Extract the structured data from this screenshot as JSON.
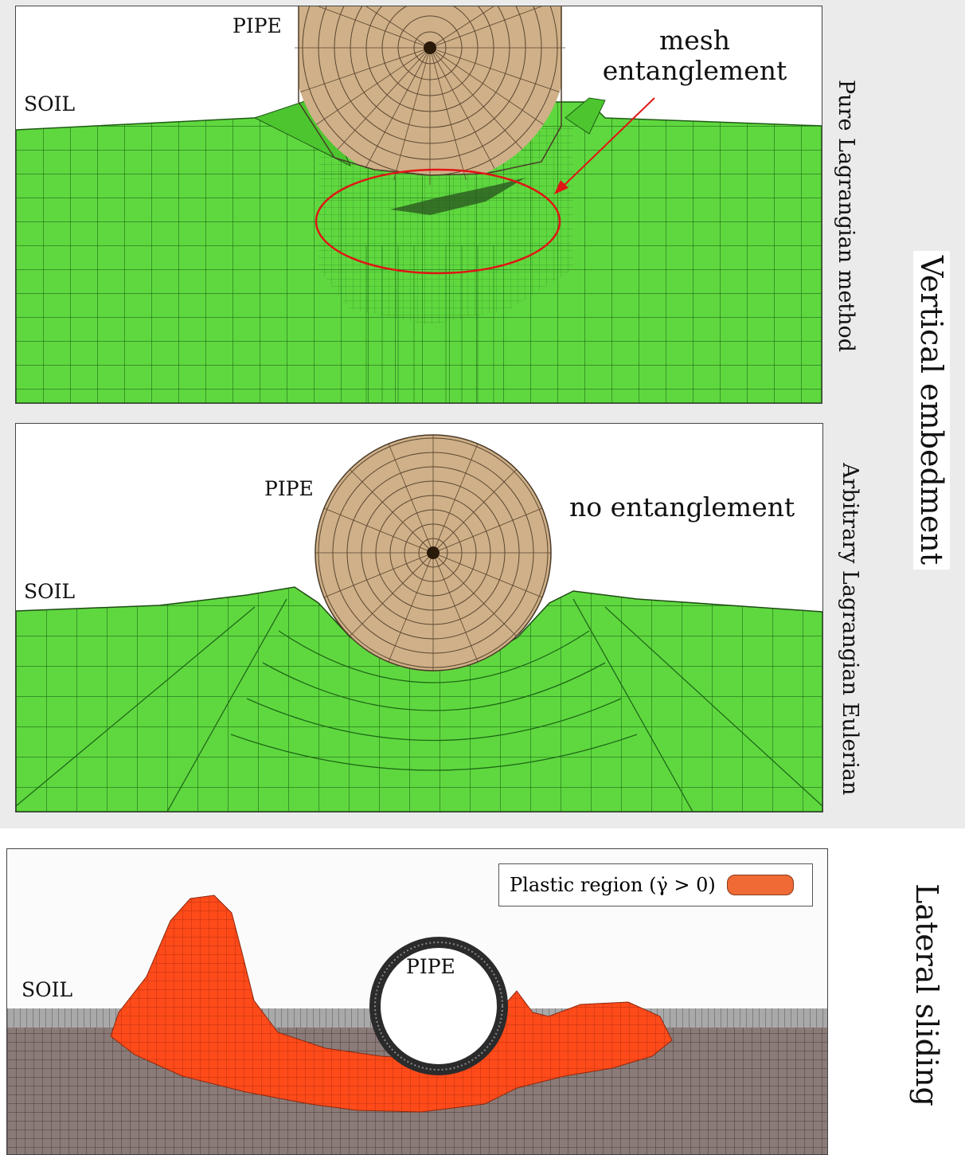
{
  "colors": {
    "soil": "#5fd83f",
    "grid": "#1f6a18",
    "pipe": "#cfb088",
    "pipe_line": "#5b4630",
    "annotation": "#e01515",
    "plastic": "#ff4a1a",
    "swatch": "#ef6a35",
    "soil_gray": "#8b7b78"
  },
  "panel1": {
    "pipe_label": "PIPE",
    "soil_label": "SOIL",
    "annotation_line1": "mesh",
    "annotation_line2": "entanglement",
    "method_label": "Pure Lagrangian method"
  },
  "panel2": {
    "pipe_label": "PIPE",
    "soil_label": "SOIL",
    "annotation": "no entanglement",
    "method_label": "Arbitrary Lagrangian Eulerian"
  },
  "vertical_label": "Vertical embedment",
  "panel3": {
    "pipe_label": "PIPE",
    "soil_label": "SOIL",
    "legend_label": "Plastic region (γ̇ > 0)"
  },
  "lateral_label": "Lateral sliding"
}
